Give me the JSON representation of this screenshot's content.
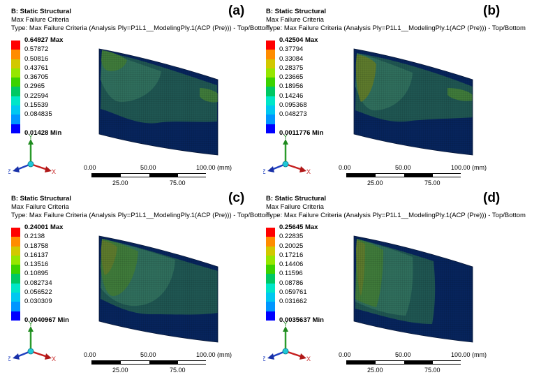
{
  "colors": {
    "legend": [
      "#ff0000",
      "#ff8c00",
      "#d2c800",
      "#96e600",
      "#3cd200",
      "#00c864",
      "#00e6c8",
      "#00c8f0",
      "#0096ff",
      "#0000ff"
    ],
    "plate_dark": "#07245c",
    "plate_mid": "#1f5652",
    "plate_teal": "#2f6e5c",
    "plate_green": "#3f7a3a",
    "plate_olive": "#5d7a2c"
  },
  "panels": [
    {
      "id": "a",
      "label": "(a)",
      "title": "B: Static Structural",
      "subtitle": "Max Failure Criteria",
      "type_line": "Type: Max Failure Criteria (Analysis Ply=P1L1__ModelingPly.1(ACP (Pre))) - Top/Bottom",
      "legend_max": "0.64927 Max",
      "legend_values": [
        "0.57872",
        "0.50816",
        "0.43761",
        "0.36705",
        "0.2965",
        "0.22594",
        "0.15539",
        "0.084835"
      ],
      "legend_min": "0.01428 Min"
    },
    {
      "id": "b",
      "label": "(b)",
      "title": "B: Static Structural",
      "subtitle": "Max Failure Criteria",
      "type_line": "Type: Max Failure Criteria (Analysis Ply=P1L1__ModelingPly.1(ACP (Pre))) - Top/Bottom",
      "legend_max": "0.42504 Max",
      "legend_values": [
        "0.37794",
        "0.33084",
        "0.28375",
        "0.23665",
        "0.18956",
        "0.14246",
        "0.095368",
        "0.048273"
      ],
      "legend_min": "0.0011776 Min"
    },
    {
      "id": "c",
      "label": "(c)",
      "title": "B: Static Structural",
      "subtitle": "Max Failure Criteria",
      "type_line": "Type: Max Failure Criteria (Analysis Ply=P1L1__ModelingPly.1(ACP (Pre))) - Top/Bottom",
      "legend_max": "0.24001 Max",
      "legend_values": [
        "0.2138",
        "0.18758",
        "0.16137",
        "0.13516",
        "0.10895",
        "0.082734",
        "0.056522",
        "0.030309"
      ],
      "legend_min": "0.0040967 Min"
    },
    {
      "id": "d",
      "label": "(d)",
      "title": "B: Static Structural",
      "subtitle": "Max Failure Criteria",
      "type_line": "Type: Max Failure Criteria (Analysis Ply=P1L1__ModelingPly.1(ACP (Pre))) - Top/Bottom",
      "legend_max": "0.25645 Max",
      "legend_values": [
        "0.22835",
        "0.20025",
        "0.17216",
        "0.14406",
        "0.11596",
        "0.08786",
        "0.059761",
        "0.031662"
      ],
      "legend_min": "0.0035637 Min"
    }
  ],
  "axis_labels": {
    "x": "X",
    "y": "Y",
    "z": "Z"
  },
  "scale_bar": {
    "top_labels": [
      "0.00",
      "50.00",
      "100.00 (mm)"
    ],
    "bottom_labels": [
      "25.00",
      "75.00"
    ]
  }
}
